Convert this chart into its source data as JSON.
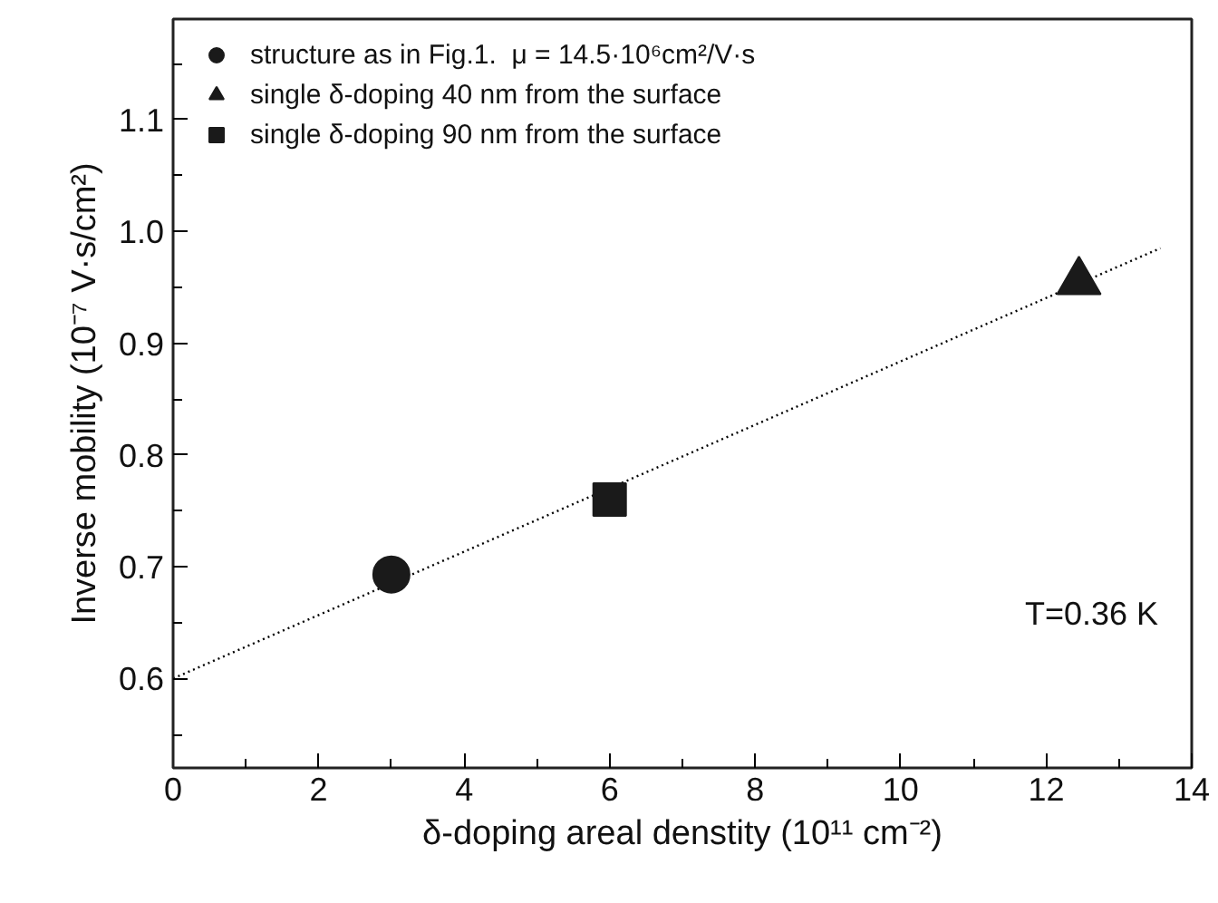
{
  "chart_data": {
    "type": "scatter",
    "xlabel": "δ-doping areal denstity (10¹¹ cm⁻²)",
    "ylabel": "Inverse mobility (10⁻⁷ V·s/cm²)",
    "xlim": [
      0,
      14
    ],
    "ylim": [
      0.52,
      1.19
    ],
    "xticks": [
      0,
      {
        "value": 1,
        "label": null
      },
      2,
      {
        "value": 3,
        "label": null
      },
      4,
      {
        "value": 5,
        "label": null
      },
      6,
      {
        "value": 7,
        "label": null
      },
      8,
      {
        "value": 9,
        "label": null
      },
      10,
      {
        "value": 11,
        "label": null
      },
      12,
      {
        "value": 13,
        "label": null
      },
      14
    ],
    "yticks": [
      {
        "value": 0.55,
        "label": null
      },
      0.6,
      {
        "value": 0.65,
        "label": null
      },
      0.7,
      {
        "value": 0.75,
        "label": null
      },
      0.8,
      {
        "value": 0.85,
        "label": null
      },
      0.9,
      {
        "value": 0.95,
        "label": null
      },
      {
        "value": 1.0,
        "label": "1.0"
      },
      {
        "value": 1.05,
        "label": null
      },
      1.1,
      {
        "value": 1.15,
        "label": null
      }
    ],
    "grid": false,
    "legend": "top left",
    "series": [
      {
        "type": "line",
        "line_style": "dotted",
        "color": "#000000",
        "x": [
          0,
          13.57
        ],
        "values": [
          0.6,
          0.985
        ]
      },
      {
        "name": "structure as in Fig.1.  μ = 14.5·10⁶cm²/V·s",
        "marker": "circle",
        "color": "#1a1a1a",
        "x": [
          3
        ],
        "values": [
          0.693
        ]
      },
      {
        "name": "single δ-doping 40 nm from the surface",
        "marker": "triangle",
        "color": "#1a1a1a",
        "x": [
          12.45
        ],
        "values": [
          0.955
        ]
      },
      {
        "name": "single δ-doping 90 nm from the surface",
        "marker": "square",
        "color": "#1a1a1a",
        "x": [
          6
        ],
        "values": [
          0.76
        ]
      }
    ],
    "annotations": [
      "T=0.36 K"
    ]
  }
}
